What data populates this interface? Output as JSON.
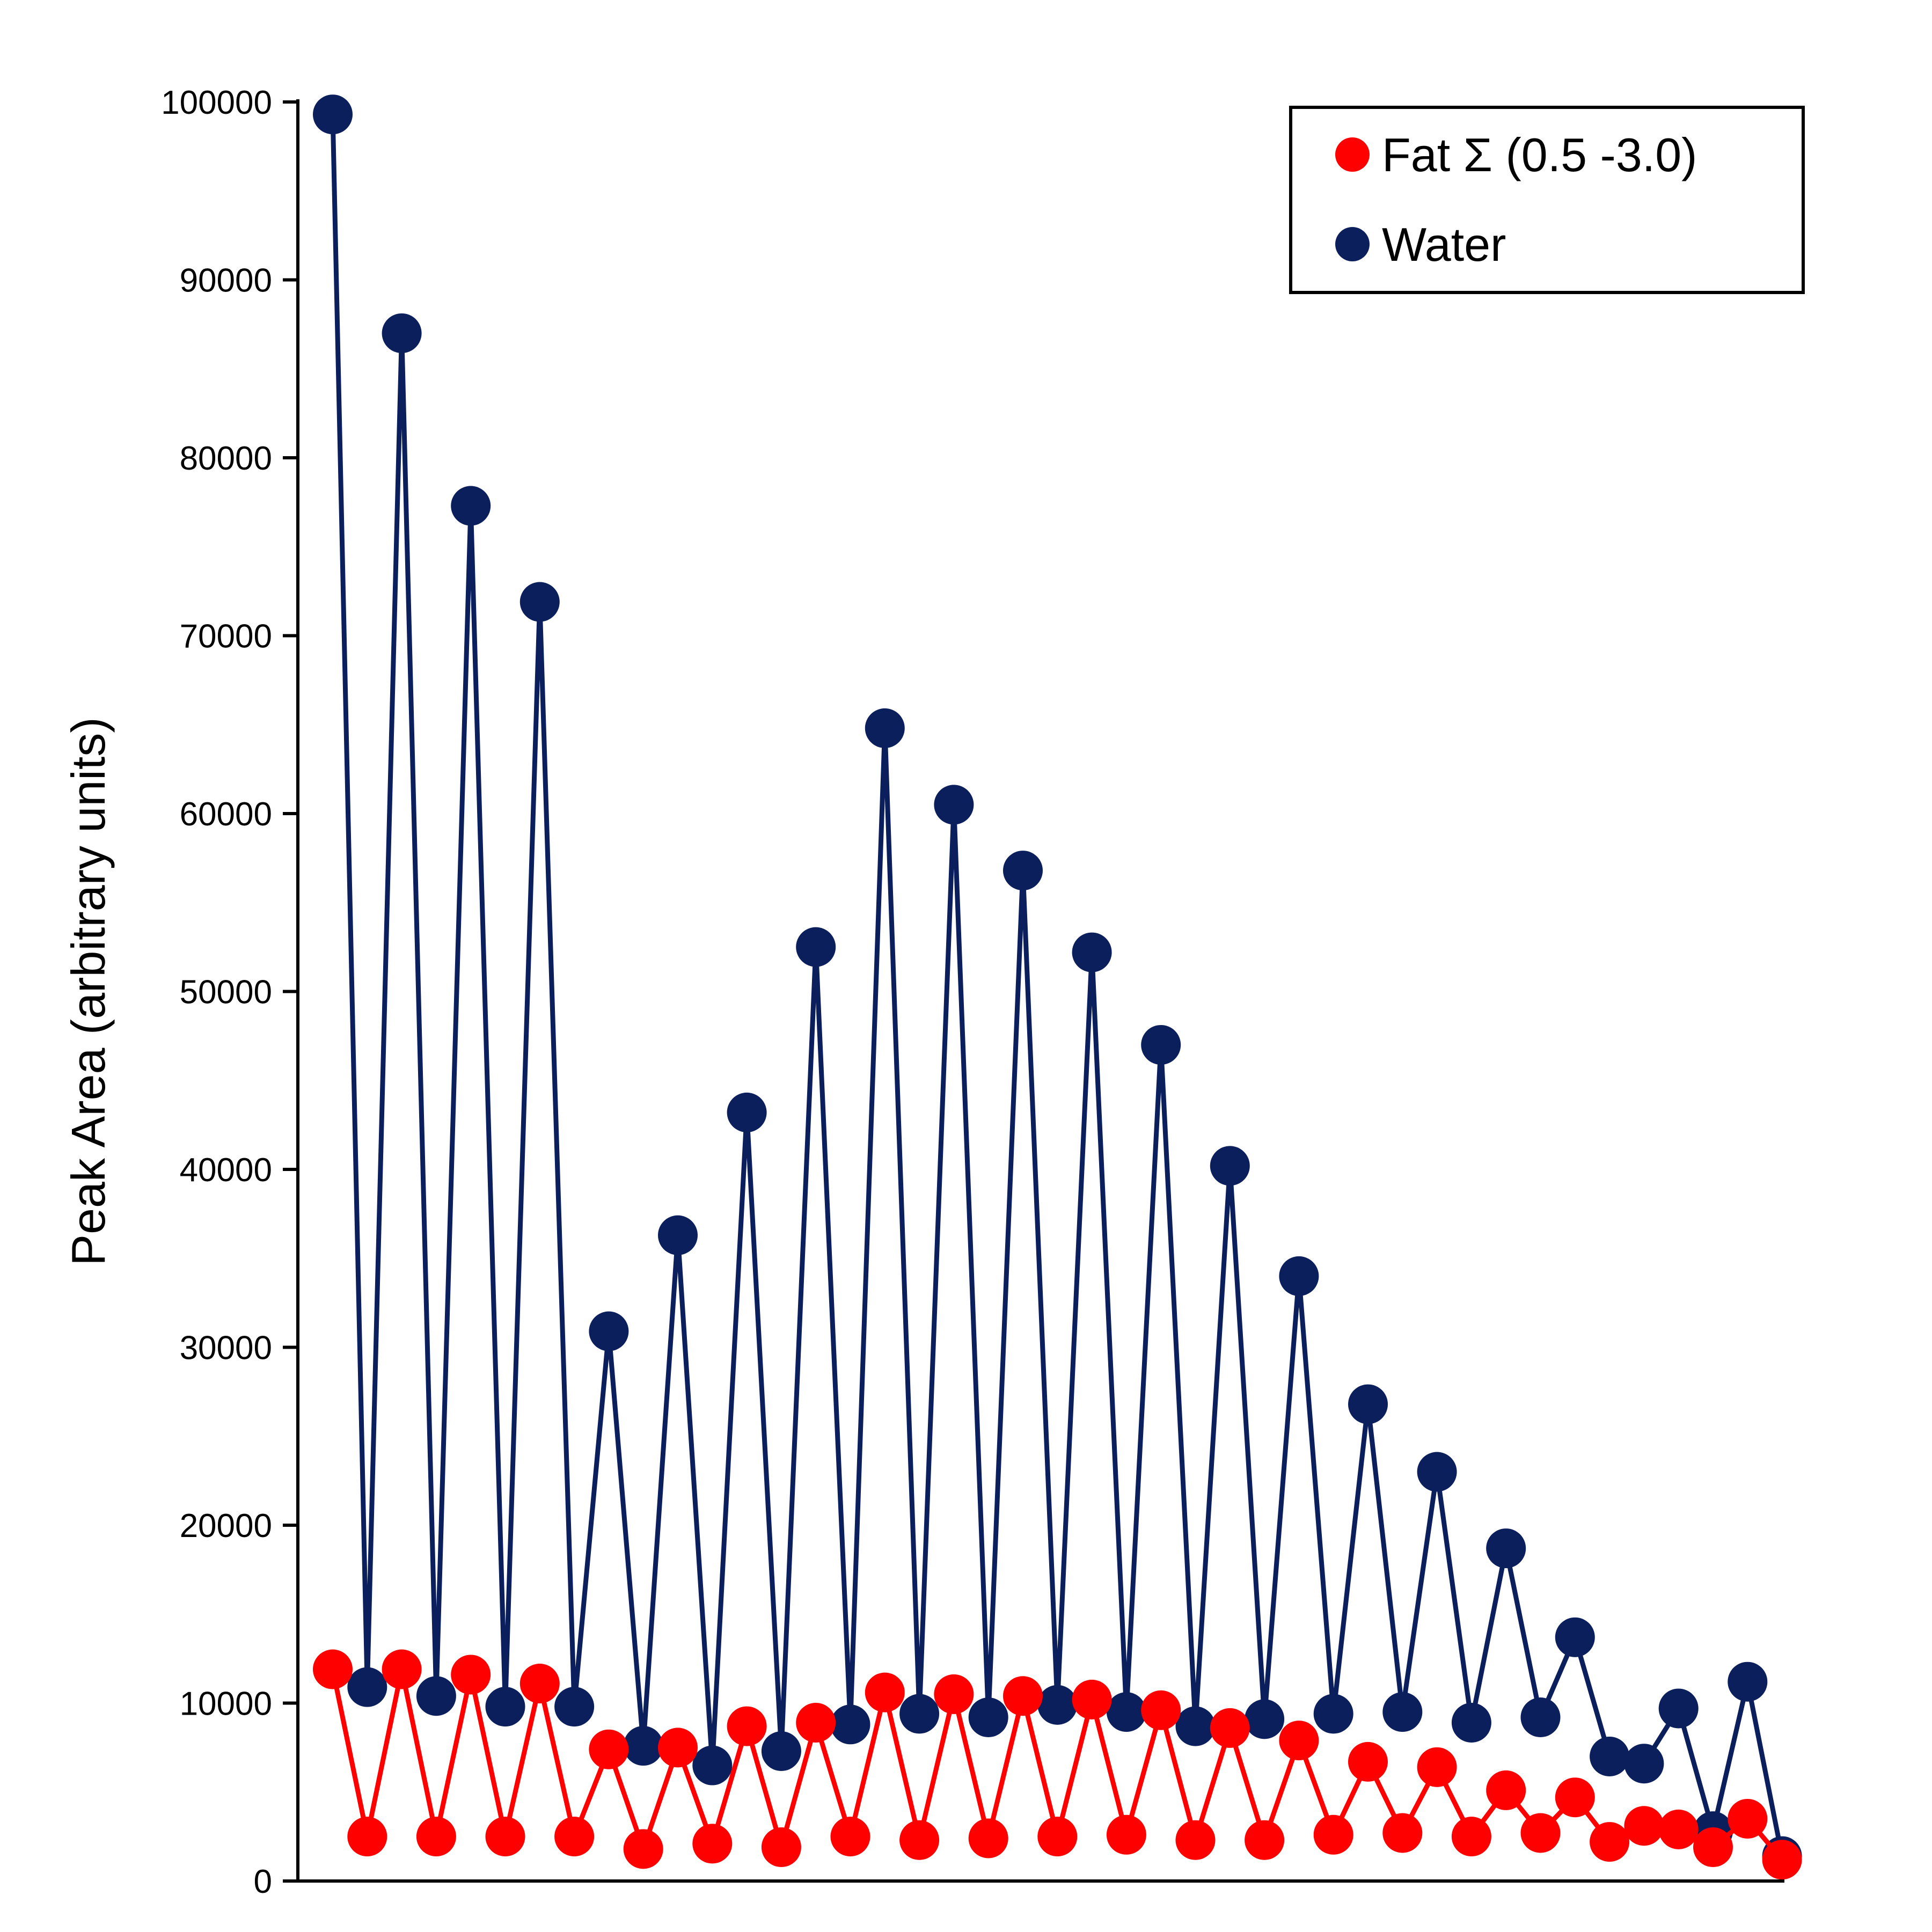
{
  "chart_data": {
    "type": "line",
    "title": "",
    "xlabel": "",
    "ylabel": "Peak Area (arbitrary units)",
    "ylim": [
      0,
      100000
    ],
    "yticks": [
      "0",
      "10000",
      "20000",
      "30000",
      "40000",
      "50000",
      "60000",
      "70000",
      "80000",
      "90000",
      "100000"
    ],
    "xlim": [
      1,
      43
    ],
    "legend_position": "top-right",
    "series": [
      {
        "name": "Fat Σ (0.5 -3.0)",
        "color": "#ff0000",
        "x": [
          1,
          2,
          3,
          4,
          5,
          6,
          7,
          8,
          9,
          10,
          11,
          12,
          13,
          14,
          15,
          16,
          17,
          18,
          19,
          20,
          21,
          22,
          23,
          24,
          25,
          26,
          27,
          28,
          29,
          30,
          31,
          32,
          33,
          34,
          35,
          36,
          37,
          38,
          39,
          40,
          41,
          42,
          43
        ],
        "values": [
          11900,
          2500,
          11900,
          2500,
          11600,
          2500,
          11100,
          2500,
          7400,
          1800,
          7500,
          2100,
          8700,
          1900,
          8900,
          2500,
          10600,
          2300,
          10500,
          2400,
          10400,
          2500,
          10200,
          2600,
          9600,
          2300,
          8600,
          2300,
          7900,
          2600,
          6700,
          2700,
          6400,
          2500,
          5100,
          2700,
          4700,
          2200,
          3100,
          2900,
          1900,
          3500,
          1200
        ]
      },
      {
        "name": "Water",
        "color": "#0b1f5c",
        "x": [
          1,
          2,
          3,
          4,
          5,
          6,
          7,
          8,
          9,
          10,
          11,
          12,
          13,
          14,
          15,
          16,
          17,
          18,
          19,
          20,
          21,
          22,
          23,
          24,
          25,
          26,
          27,
          28,
          29,
          30,
          31,
          32,
          33,
          34,
          35,
          36,
          37,
          38,
          39,
          40,
          41,
          42,
          43
        ],
        "values": [
          99300,
          10900,
          87000,
          10400,
          77300,
          9800,
          71900,
          9800,
          30900,
          7600,
          36300,
          6500,
          43200,
          7300,
          52500,
          8800,
          64800,
          9400,
          60500,
          9200,
          56800,
          9900,
          52200,
          9500,
          47000,
          8700,
          40200,
          9100,
          34000,
          9400,
          26800,
          9500,
          23000,
          8900,
          18700,
          9200,
          13700,
          7000,
          6600,
          9700,
          2800,
          11200,
          1400
        ]
      }
    ]
  },
  "legend": {
    "items": [
      {
        "label": "Fat Σ (0.5 -3.0)",
        "color": "#ff0000"
      },
      {
        "label": "Water",
        "color": "#0b1f5c"
      }
    ]
  }
}
